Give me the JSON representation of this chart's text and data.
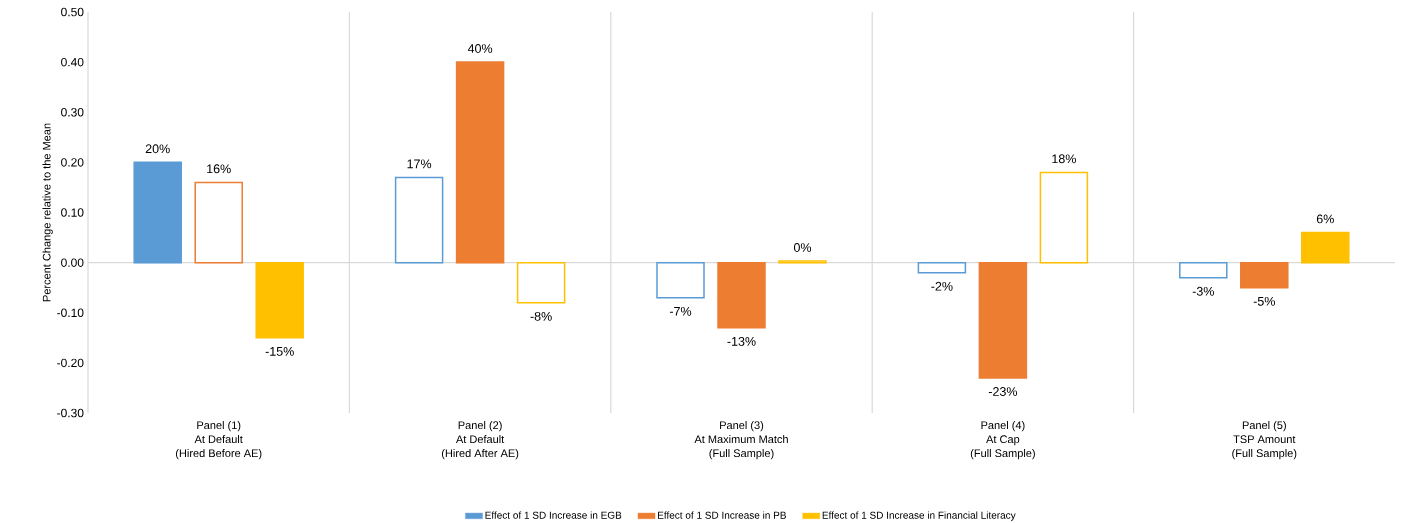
{
  "chart_data": {
    "type": "bar",
    "ylabel": "Percent Change relative to the Mean",
    "categories": [
      "Panel (1)\nAt Default\n(Hired Before AE)",
      "Panel (2)\nAt Default\n(Hired After AE)",
      "Panel (3)\nAt Maximum Match\n(Full Sample)",
      "Panel (4)\nAt Cap\n(Full Sample)",
      "Panel (5)\nTSP Amount\n(Full Sample)"
    ],
    "series": [
      {
        "name": "Effect of 1 SD Increase in EGB",
        "color": "#5b9bd5",
        "colors": [
          "#5b9bd5",
          "#ffffff",
          "#ffffff",
          "#ffffff",
          "#ffffff"
        ],
        "values": [
          0.2,
          0.17,
          -0.07,
          -0.02,
          -0.03
        ],
        "value_labels": [
          "20%",
          "17%",
          "-7%",
          "-2%",
          "-3%"
        ]
      },
      {
        "name": "Effect of 1 SD Increase in PB",
        "color": "#ed7d31",
        "colors": [
          "#ffffff",
          "#ed7d31",
          "#ed7d31",
          "#ed7d31",
          "#ed7d31"
        ],
        "values": [
          0.16,
          0.4,
          -0.13,
          -0.23,
          -0.05
        ],
        "value_labels": [
          "16%",
          "40%",
          "-13%",
          "-23%",
          "-5%"
        ]
      },
      {
        "name": "Effect of 1 SD Increase in Financial Literacy",
        "color": "#ffc000",
        "colors": [
          "#ffc000",
          "#ffffff",
          "#ffffff",
          "#ffffff",
          "#ffc000"
        ],
        "values": [
          -0.15,
          -0.08,
          0.003,
          0.18,
          0.06
        ],
        "value_labels": [
          "-15%",
          "-8%",
          "0%",
          "18%",
          "6%"
        ]
      }
    ],
    "ylim": [
      -0.3,
      0.5
    ],
    "yticks": [
      {
        "value": -0.3,
        "label": "-0.30"
      },
      {
        "value": -0.2,
        "label": "-0.20"
      },
      {
        "value": -0.1,
        "label": "-0.10"
      },
      {
        "value": 0.0,
        "label": "0.00"
      },
      {
        "value": 0.1,
        "label": "0.10"
      },
      {
        "value": 0.2,
        "label": "0.20"
      },
      {
        "value": 0.3,
        "label": "0.30"
      },
      {
        "value": 0.4,
        "label": "0.40"
      },
      {
        "value": 0.5,
        "label": "0.50"
      }
    ],
    "ref_lines": [
      {
        "axis": "y",
        "value": 0,
        "color": "#d9d9d9"
      }
    ],
    "grid": "x",
    "legend": "bottom"
  }
}
